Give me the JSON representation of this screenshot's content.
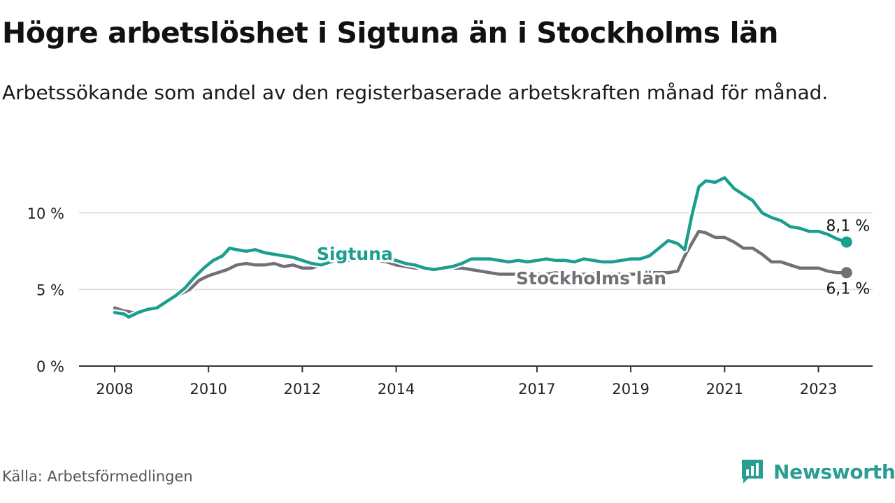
{
  "title": "Högre arbetslöshet i Sigtuna än i Stockholms län",
  "subtitle": "Arbetssökande som andel av den registerbaserade arbetskraften månad för månad.",
  "source": "Källa: Arbetsförmedlingen",
  "brand": "Newsworthy",
  "colors": {
    "sigtuna": "#1a9e8f",
    "stockholm": "#727076",
    "grid": "#d8d8d8",
    "axis": "#333333"
  },
  "chart_data": {
    "type": "line",
    "title": "Högre arbetslöshet i Sigtuna än i Stockholms län",
    "ylim": [
      0,
      12.5
    ],
    "xlim": [
      2008,
      2024.25
    ],
    "y_ticks": [
      {
        "value": 0,
        "label": "0 %"
      },
      {
        "value": 5,
        "label": "5 %"
      },
      {
        "value": 10,
        "label": "10 %"
      }
    ],
    "x_ticks": [
      {
        "value": 2008,
        "label": "2008"
      },
      {
        "value": 2010,
        "label": "2010"
      },
      {
        "value": 2012,
        "label": "2012"
      },
      {
        "value": 2014,
        "label": "2014"
      },
      {
        "value": 2017,
        "label": "2017"
      },
      {
        "value": 2019,
        "label": "2019"
      },
      {
        "value": 2021,
        "label": "2021"
      },
      {
        "value": 2023,
        "label": "2023"
      }
    ],
    "series": [
      {
        "name": "Stockholms län",
        "end_label": "6,1 %",
        "points": [
          [
            2008.0,
            3.8
          ],
          [
            2008.2,
            3.6
          ],
          [
            2008.4,
            3.5
          ],
          [
            2008.6,
            3.6
          ],
          [
            2008.8,
            3.7
          ],
          [
            2009.0,
            3.9
          ],
          [
            2009.2,
            4.3
          ],
          [
            2009.4,
            4.7
          ],
          [
            2009.6,
            5.0
          ],
          [
            2009.8,
            5.6
          ],
          [
            2010.0,
            5.9
          ],
          [
            2010.2,
            6.1
          ],
          [
            2010.4,
            6.3
          ],
          [
            2010.6,
            6.6
          ],
          [
            2010.8,
            6.7
          ],
          [
            2011.0,
            6.6
          ],
          [
            2011.2,
            6.6
          ],
          [
            2011.4,
            6.7
          ],
          [
            2011.6,
            6.5
          ],
          [
            2011.8,
            6.6
          ],
          [
            2012.0,
            6.4
          ],
          [
            2012.2,
            6.4
          ],
          [
            2012.4,
            6.6
          ],
          [
            2012.6,
            6.8
          ],
          [
            2012.8,
            6.9
          ],
          [
            2013.0,
            6.9
          ],
          [
            2013.2,
            7.0
          ],
          [
            2013.4,
            7.0
          ],
          [
            2013.6,
            6.9
          ],
          [
            2013.8,
            6.8
          ],
          [
            2014.0,
            6.6
          ],
          [
            2014.2,
            6.5
          ],
          [
            2014.4,
            6.4
          ],
          [
            2014.6,
            6.4
          ],
          [
            2014.8,
            6.3
          ],
          [
            2015.0,
            6.3
          ],
          [
            2015.2,
            6.4
          ],
          [
            2015.4,
            6.4
          ],
          [
            2015.6,
            6.3
          ],
          [
            2015.8,
            6.2
          ],
          [
            2016.0,
            6.1
          ],
          [
            2016.2,
            6.0
          ],
          [
            2016.4,
            6.0
          ],
          [
            2016.6,
            6.0
          ],
          [
            2016.8,
            6.0
          ],
          [
            2017.0,
            6.0
          ],
          [
            2017.2,
            6.0
          ],
          [
            2017.4,
            6.1
          ],
          [
            2017.6,
            6.0
          ],
          [
            2017.8,
            6.0
          ],
          [
            2018.0,
            6.0
          ],
          [
            2018.2,
            6.0
          ],
          [
            2018.4,
            6.0
          ],
          [
            2018.6,
            6.0
          ],
          [
            2018.8,
            6.0
          ],
          [
            2019.0,
            6.0
          ],
          [
            2019.2,
            6.0
          ],
          [
            2019.4,
            6.1
          ],
          [
            2019.6,
            6.1
          ],
          [
            2019.8,
            6.1
          ],
          [
            2020.0,
            6.2
          ],
          [
            2020.15,
            7.2
          ],
          [
            2020.3,
            8.0
          ],
          [
            2020.45,
            8.8
          ],
          [
            2020.6,
            8.7
          ],
          [
            2020.8,
            8.4
          ],
          [
            2021.0,
            8.4
          ],
          [
            2021.2,
            8.1
          ],
          [
            2021.4,
            7.7
          ],
          [
            2021.6,
            7.7
          ],
          [
            2021.8,
            7.3
          ],
          [
            2022.0,
            6.8
          ],
          [
            2022.2,
            6.8
          ],
          [
            2022.4,
            6.6
          ],
          [
            2022.6,
            6.4
          ],
          [
            2022.8,
            6.4
          ],
          [
            2023.0,
            6.4
          ],
          [
            2023.2,
            6.2
          ],
          [
            2023.4,
            6.1
          ],
          [
            2023.6,
            6.1
          ]
        ]
      },
      {
        "name": "Sigtuna",
        "end_label": "8,1 %",
        "points": [
          [
            2008.0,
            3.5
          ],
          [
            2008.2,
            3.4
          ],
          [
            2008.3,
            3.2
          ],
          [
            2008.5,
            3.5
          ],
          [
            2008.7,
            3.7
          ],
          [
            2008.9,
            3.8
          ],
          [
            2009.1,
            4.2
          ],
          [
            2009.3,
            4.6
          ],
          [
            2009.5,
            5.1
          ],
          [
            2009.7,
            5.8
          ],
          [
            2009.9,
            6.4
          ],
          [
            2010.1,
            6.9
          ],
          [
            2010.3,
            7.2
          ],
          [
            2010.45,
            7.7
          ],
          [
            2010.6,
            7.6
          ],
          [
            2010.8,
            7.5
          ],
          [
            2011.0,
            7.6
          ],
          [
            2011.2,
            7.4
          ],
          [
            2011.4,
            7.3
          ],
          [
            2011.6,
            7.2
          ],
          [
            2011.8,
            7.1
          ],
          [
            2012.0,
            6.9
          ],
          [
            2012.2,
            6.7
          ],
          [
            2012.4,
            6.6
          ],
          [
            2012.6,
            6.8
          ],
          [
            2012.8,
            7.0
          ],
          [
            2013.0,
            7.1
          ],
          [
            2013.2,
            7.2
          ],
          [
            2013.4,
            7.1
          ],
          [
            2013.6,
            7.0
          ],
          [
            2013.8,
            7.0
          ],
          [
            2014.0,
            6.9
          ],
          [
            2014.2,
            6.7
          ],
          [
            2014.4,
            6.6
          ],
          [
            2014.6,
            6.4
          ],
          [
            2014.8,
            6.3
          ],
          [
            2015.0,
            6.4
          ],
          [
            2015.2,
            6.5
          ],
          [
            2015.4,
            6.7
          ],
          [
            2015.6,
            7.0
          ],
          [
            2015.8,
            7.0
          ],
          [
            2016.0,
            7.0
          ],
          [
            2016.2,
            6.9
          ],
          [
            2016.4,
            6.8
          ],
          [
            2016.6,
            6.9
          ],
          [
            2016.8,
            6.8
          ],
          [
            2017.0,
            6.9
          ],
          [
            2017.2,
            7.0
          ],
          [
            2017.4,
            6.9
          ],
          [
            2017.6,
            6.9
          ],
          [
            2017.8,
            6.8
          ],
          [
            2018.0,
            7.0
          ],
          [
            2018.2,
            6.9
          ],
          [
            2018.4,
            6.8
          ],
          [
            2018.6,
            6.8
          ],
          [
            2018.8,
            6.9
          ],
          [
            2019.0,
            7.0
          ],
          [
            2019.2,
            7.0
          ],
          [
            2019.4,
            7.2
          ],
          [
            2019.6,
            7.7
          ],
          [
            2019.8,
            8.2
          ],
          [
            2020.0,
            8.0
          ],
          [
            2020.15,
            7.6
          ],
          [
            2020.3,
            9.8
          ],
          [
            2020.45,
            11.7
          ],
          [
            2020.6,
            12.1
          ],
          [
            2020.8,
            12.0
          ],
          [
            2021.0,
            12.3
          ],
          [
            2021.2,
            11.6
          ],
          [
            2021.4,
            11.2
          ],
          [
            2021.6,
            10.8
          ],
          [
            2021.8,
            10.0
          ],
          [
            2022.0,
            9.7
          ],
          [
            2022.2,
            9.5
          ],
          [
            2022.4,
            9.1
          ],
          [
            2022.6,
            9.0
          ],
          [
            2022.8,
            8.8
          ],
          [
            2023.0,
            8.8
          ],
          [
            2023.2,
            8.6
          ],
          [
            2023.4,
            8.3
          ],
          [
            2023.6,
            8.1
          ]
        ]
      }
    ]
  }
}
